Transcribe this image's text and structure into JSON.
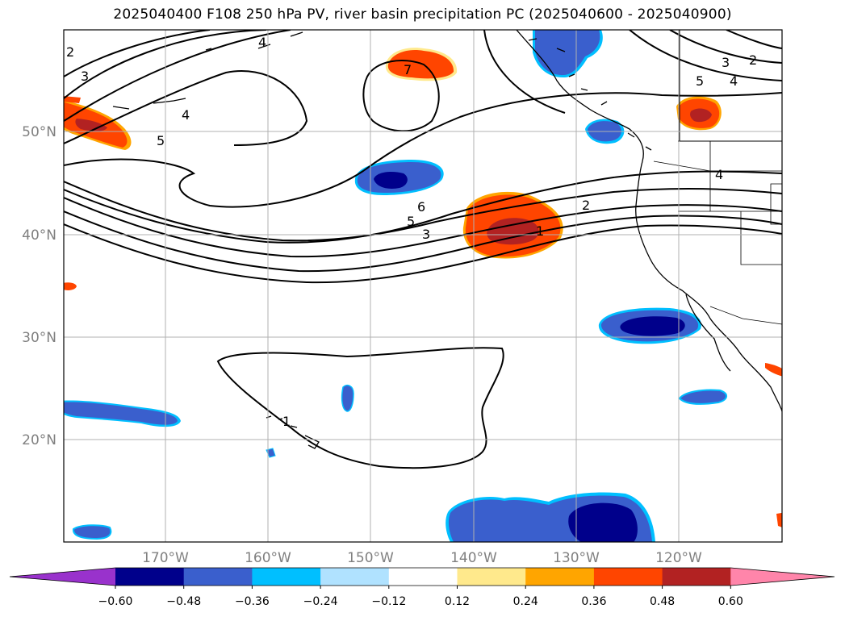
{
  "title": "2025040400 F108 250 hPa PV, river basin precipitation PC (2025040600 - 2025040900)",
  "map": {
    "lon_labels": [
      "170°W",
      "160°W",
      "150°W",
      "140°W",
      "130°W",
      "120°W"
    ],
    "lat_labels": [
      "50°N",
      "40°N",
      "30°N",
      "20°N"
    ],
    "pv_contour_labels": [
      "2",
      "3",
      "4",
      "5",
      "7",
      "5",
      "4",
      "3",
      "2",
      "4",
      "6",
      "5",
      "3",
      "1",
      "2",
      "4",
      "1"
    ]
  },
  "colorbar": {
    "ticks": [
      "−0.60",
      "−0.48",
      "−0.36",
      "−0.24",
      "−0.12",
      "0.12",
      "0.24",
      "0.36",
      "0.48",
      "0.60"
    ],
    "colors": [
      "#9932cc",
      "#00008b",
      "#3a5fcd",
      "#00bfff",
      "#b0e2ff",
      "#ffffff",
      "#ffe98c",
      "#ffa500",
      "#ff4500",
      "#b22222",
      "#ff85aa"
    ]
  },
  "palette": {
    "strong_neg": "#00008b",
    "mid_neg": "#3a5fcd",
    "weak_neg": "#00bfff",
    "weak_pos": "#ffa500",
    "mid_pos": "#ff4500",
    "strong_pos": "#b22222"
  }
}
